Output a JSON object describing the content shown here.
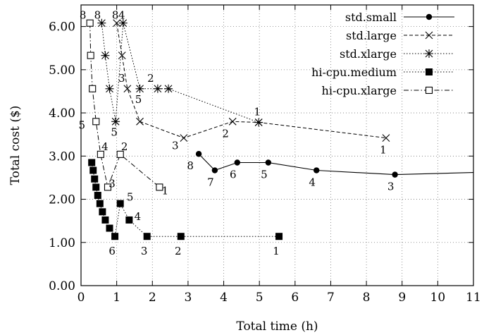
{
  "chart_data": {
    "type": "line",
    "xlabel": "Total time (h)",
    "ylabel": "Total cost ($)",
    "xlim": [
      0,
      11
    ],
    "ylim": [
      0,
      6.5
    ],
    "xticks": [
      "0",
      "1",
      "2",
      "3",
      "4",
      "5",
      "6",
      "7",
      "8",
      "9",
      "10",
      "11"
    ],
    "yticks": [
      "0.00",
      "1.00",
      "2.00",
      "3.00",
      "4.00",
      "5.00",
      "6.00"
    ],
    "grid": true,
    "legend_position": "top-right",
    "series": [
      {
        "name": "std.small",
        "line_style": "solid",
        "marker": "filled-circle",
        "points": [
          {
            "x": 3.3,
            "y": 3.05,
            "label": "8"
          },
          {
            "x": 3.75,
            "y": 2.67,
            "label": "7"
          },
          {
            "x": 4.38,
            "y": 2.85,
            "label": "6"
          },
          {
            "x": 5.25,
            "y": 2.85,
            "label": "5"
          },
          {
            "x": 6.6,
            "y": 2.67,
            "label": "4"
          },
          {
            "x": 8.8,
            "y": 2.57,
            "label": "3"
          },
          {
            "x": 11.0,
            "y": 2.62,
            "label": ""
          }
        ]
      },
      {
        "name": "std.large",
        "line_style": "dashed",
        "marker": "x",
        "points": [
          {
            "x": 1.0,
            "y": 6.08,
            "label": "8"
          },
          {
            "x": 1.15,
            "y": 5.33,
            "label": ""
          },
          {
            "x": 1.3,
            "y": 4.56,
            "label": "3"
          },
          {
            "x": 1.65,
            "y": 3.8,
            "label": ""
          },
          {
            "x": 2.88,
            "y": 3.42,
            "label": "3"
          },
          {
            "x": 4.25,
            "y": 3.8,
            "label": "2"
          },
          {
            "x": 4.98,
            "y": 3.78,
            "label": "1"
          },
          {
            "x": 8.55,
            "y": 3.42,
            "label": "1"
          }
        ]
      },
      {
        "name": "std.xlarge",
        "line_style": "dotted",
        "marker": "star",
        "points": [
          {
            "x": 0.58,
            "y": 6.08,
            "label": "8"
          },
          {
            "x": 0.68,
            "y": 5.33,
            "label": ""
          },
          {
            "x": 0.8,
            "y": 4.56,
            "label": ""
          },
          {
            "x": 0.97,
            "y": 3.8,
            "label": "5"
          },
          {
            "x": 1.18,
            "y": 6.08,
            "label": "4"
          },
          {
            "x": 1.65,
            "y": 4.56,
            "label": "5"
          },
          {
            "x": 2.15,
            "y": 4.56,
            "label": "2"
          },
          {
            "x": 2.45,
            "y": 4.56,
            "label": ""
          },
          {
            "x": 4.98,
            "y": 3.78,
            "label": ""
          }
        ]
      },
      {
        "name": "hi-cpu.medium",
        "line_style": "dotted",
        "marker": "filled-square",
        "points": [
          {
            "x": 0.3,
            "y": 2.85,
            "label": ""
          },
          {
            "x": 0.34,
            "y": 2.67,
            "label": ""
          },
          {
            "x": 0.38,
            "y": 2.47,
            "label": ""
          },
          {
            "x": 0.42,
            "y": 2.28,
            "label": ""
          },
          {
            "x": 0.47,
            "y": 2.09,
            "label": ""
          },
          {
            "x": 0.53,
            "y": 1.9,
            "label": ""
          },
          {
            "x": 0.6,
            "y": 1.71,
            "label": ""
          },
          {
            "x": 0.68,
            "y": 1.52,
            "label": ""
          },
          {
            "x": 0.8,
            "y": 1.33,
            "label": ""
          },
          {
            "x": 0.95,
            "y": 1.14,
            "label": "6"
          },
          {
            "x": 1.1,
            "y": 1.9,
            "label": "5"
          },
          {
            "x": 1.35,
            "y": 1.52,
            "label": "4"
          },
          {
            "x": 1.85,
            "y": 1.14,
            "label": "3"
          },
          {
            "x": 2.8,
            "y": 1.14,
            "label": "2"
          },
          {
            "x": 5.55,
            "y": 1.14,
            "label": "1"
          }
        ]
      },
      {
        "name": "hi-cpu.xlarge",
        "line_style": "dash-dot",
        "marker": "open-square",
        "points": [
          {
            "x": 0.25,
            "y": 6.08,
            "label": "8"
          },
          {
            "x": 0.27,
            "y": 5.33,
            "label": ""
          },
          {
            "x": 0.32,
            "y": 4.56,
            "label": ""
          },
          {
            "x": 0.42,
            "y": 3.8,
            "label": "5"
          },
          {
            "x": 0.55,
            "y": 3.04,
            "label": "4"
          },
          {
            "x": 0.75,
            "y": 2.28,
            "label": "3"
          },
          {
            "x": 1.1,
            "y": 3.04,
            "label": "2"
          },
          {
            "x": 2.2,
            "y": 2.28,
            "label": "1"
          }
        ]
      }
    ]
  }
}
